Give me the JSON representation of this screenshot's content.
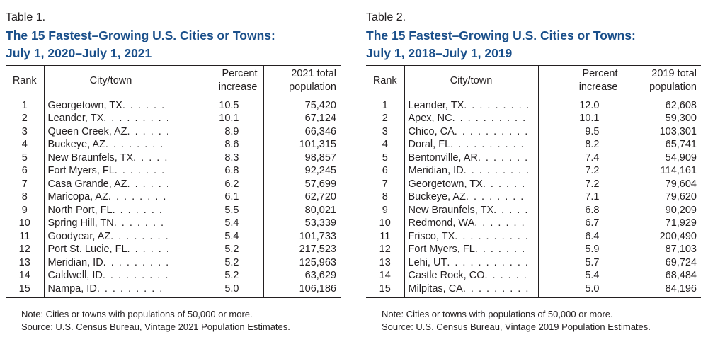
{
  "table1": {
    "label": "Table 1.",
    "title_line1": "The 15 Fastest–Growing U.S. Cities or Towns:",
    "title_line2": "July 1, 2020–July 1, 2021",
    "headers": {
      "rank": "Rank",
      "city": "City/town",
      "pct_line1": "Percent",
      "pct_line2": "increase",
      "pop_line1": "2021 total",
      "pop_line2": "population"
    },
    "rows": [
      {
        "rank": "1",
        "city": "Georgetown, TX",
        "pct": "10.5",
        "pop": "75,420"
      },
      {
        "rank": "2",
        "city": "Leander, TX",
        "pct": "10.1",
        "pop": "67,124"
      },
      {
        "rank": "3",
        "city": "Queen Creek, AZ",
        "pct": "8.9",
        "pop": "66,346"
      },
      {
        "rank": "4",
        "city": "Buckeye, AZ",
        "pct": "8.6",
        "pop": "101,315"
      },
      {
        "rank": "5",
        "city": "New Braunfels, TX",
        "pct": "8.3",
        "pop": "98,857"
      },
      {
        "rank": "6",
        "city": "Fort Myers, FL",
        "pct": "6.8",
        "pop": "92,245"
      },
      {
        "rank": "7",
        "city": "Casa Grande, AZ",
        "pct": "6.2",
        "pop": "57,699"
      },
      {
        "rank": "8",
        "city": "Maricopa, AZ",
        "pct": "6.1",
        "pop": "62,720"
      },
      {
        "rank": "9",
        "city": "North Port, FL",
        "pct": "5.5",
        "pop": "80,021"
      },
      {
        "rank": "10",
        "city": "Spring Hill, TN",
        "pct": "5.4",
        "pop": "53,339"
      },
      {
        "rank": "11",
        "city": "Goodyear, AZ",
        "pct": "5.4",
        "pop": "101,733"
      },
      {
        "rank": "12",
        "city": "Port St. Lucie, FL",
        "pct": "5.2",
        "pop": "217,523"
      },
      {
        "rank": "13",
        "city": "Meridian, ID",
        "pct": "5.2",
        "pop": "125,963"
      },
      {
        "rank": "14",
        "city": "Caldwell, ID",
        "pct": "5.2",
        "pop": "63,629"
      },
      {
        "rank": "15",
        "city": "Nampa, ID",
        "pct": "5.0",
        "pop": "106,186"
      }
    ],
    "note": "Note: Cities or towns with populations of 50,000 or more.",
    "source": "Source: U.S. Census Bureau, Vintage 2021 Population Estimates."
  },
  "table2": {
    "label": "Table 2.",
    "title_line1": "The 15 Fastest–Growing U.S. Cities or Towns:",
    "title_line2": "July 1, 2018–July 1, 2019",
    "headers": {
      "rank": "Rank",
      "city": "City/town",
      "pct_line1": "Percent",
      "pct_line2": "increase",
      "pop_line1": "2019 total",
      "pop_line2": "population"
    },
    "rows": [
      {
        "rank": "1",
        "city": "Leander, TX",
        "pct": "12.0",
        "pop": "62,608"
      },
      {
        "rank": "2",
        "city": "Apex, NC",
        "pct": "10.1",
        "pop": "59,300"
      },
      {
        "rank": "3",
        "city": "Chico, CA",
        "pct": "9.5",
        "pop": "103,301"
      },
      {
        "rank": "4",
        "city": "Doral, FL",
        "pct": "8.2",
        "pop": "65,741"
      },
      {
        "rank": "5",
        "city": "Bentonville, AR",
        "pct": "7.4",
        "pop": "54,909"
      },
      {
        "rank": "6",
        "city": "Meridian, ID",
        "pct": "7.2",
        "pop": "114,161"
      },
      {
        "rank": "7",
        "city": "Georgetown, TX",
        "pct": "7.2",
        "pop": "79,604"
      },
      {
        "rank": "8",
        "city": "Buckeye, AZ",
        "pct": "7.1",
        "pop": "79,620"
      },
      {
        "rank": "9",
        "city": "New Braunfels, TX",
        "pct": "6.8",
        "pop": "90,209"
      },
      {
        "rank": "10",
        "city": "Redmond, WA",
        "pct": "6.7",
        "pop": "71,929"
      },
      {
        "rank": "11",
        "city": "Frisco, TX",
        "pct": "6.4",
        "pop": "200,490"
      },
      {
        "rank": "12",
        "city": "Fort Myers, FL",
        "pct": "5.9",
        "pop": "87,103"
      },
      {
        "rank": "13",
        "city": "Lehi, UT",
        "pct": "5.7",
        "pop": "69,724"
      },
      {
        "rank": "14",
        "city": "Castle Rock, CO",
        "pct": "5.4",
        "pop": "68,484"
      },
      {
        "rank": "15",
        "city": "Milpitas, CA",
        "pct": "5.0",
        "pop": "84,196"
      }
    ],
    "note": "Note: Cities or towns with populations of 50,000 or more.",
    "source": "Source: U.S. Census Bureau, Vintage 2019 Population Estimates."
  },
  "colors": {
    "title": "#1a4f8a",
    "text": "#231f20",
    "background": "#ffffff"
  }
}
